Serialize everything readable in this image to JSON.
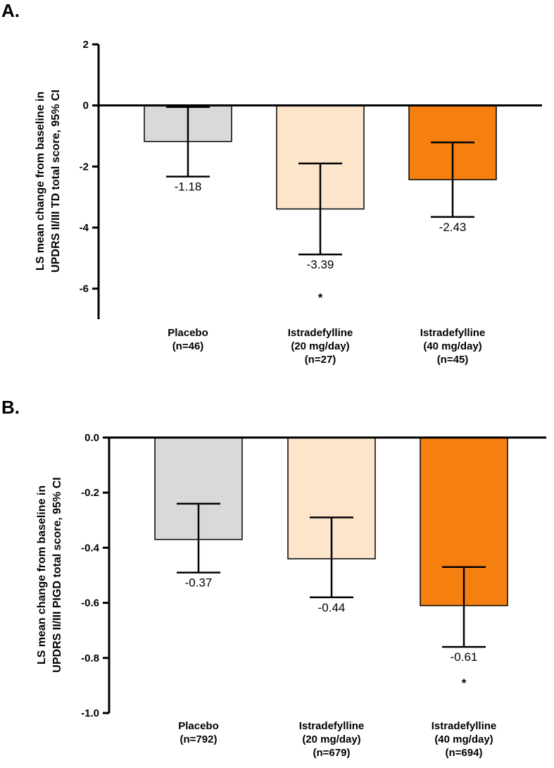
{
  "chart_data": [
    {
      "type": "bar",
      "panel_label": "A.",
      "ylabel": [
        "LS mean change from baseline in",
        "UPDRS II/III TD total score, 95% CI"
      ],
      "ylim": [
        -7,
        2
      ],
      "yticks": [
        2,
        0,
        -2,
        -4,
        -6
      ],
      "ytick_labels": [
        "2",
        "0",
        "-2",
        "-4",
        "-6"
      ],
      "categories": [
        [
          "Placebo",
          "(n=46)"
        ],
        [
          "Istradefylline",
          "(20 mg/day)",
          "(n=27)"
        ],
        [
          "Istradefylline",
          "(40 mg/day)",
          "(n=45)"
        ]
      ],
      "values": [
        -1.18,
        -3.39,
        -2.43
      ],
      "value_labels": [
        "-1.18",
        "-3.39",
        "-2.43"
      ],
      "ci_lower": [
        -2.33,
        -4.88,
        -3.65
      ],
      "ci_upper": [
        -0.05,
        -1.9,
        -1.21
      ],
      "significance": [
        "",
        "*",
        ""
      ],
      "colors": [
        "#d9d9d9",
        "#fde5cc",
        "#f57f0f"
      ]
    },
    {
      "type": "bar",
      "panel_label": "B.",
      "ylabel": [
        "LS mean change from baseline in",
        "UPDRS II/III PIGD total score, 95% CI"
      ],
      "ylim": [
        -1.0,
        0.0
      ],
      "yticks": [
        0.0,
        -0.2,
        -0.4,
        -0.6,
        -0.8,
        -1.0
      ],
      "ytick_labels": [
        "0.0",
        "-0.2",
        "-0.4",
        "-0.6",
        "-0.8",
        "-1.0"
      ],
      "categories": [
        [
          "Placebo",
          "(n=792)"
        ],
        [
          "Istradefylline",
          "(20 mg/day)",
          "(n=679)"
        ],
        [
          "Istradefylline",
          "(40 mg/day)",
          "(n=694)"
        ]
      ],
      "values": [
        -0.37,
        -0.44,
        -0.61
      ],
      "value_labels": [
        "-0.37",
        "-0.44",
        "-0.61"
      ],
      "ci_lower": [
        -0.49,
        -0.58,
        -0.76
      ],
      "ci_upper": [
        -0.24,
        -0.29,
        -0.47
      ],
      "significance": [
        "",
        "",
        "*"
      ],
      "colors": [
        "#d9d9d9",
        "#fde5cc",
        "#f57f0f"
      ]
    }
  ]
}
